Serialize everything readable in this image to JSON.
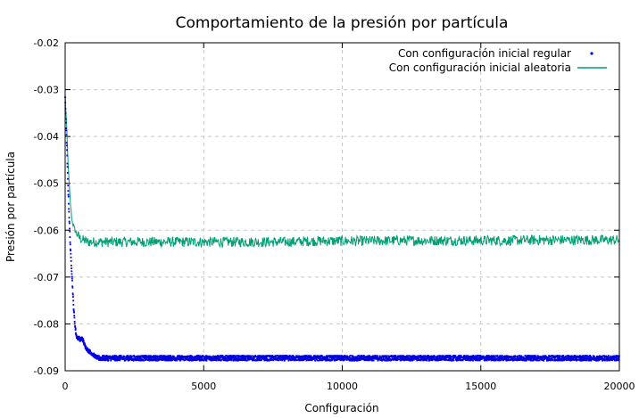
{
  "chart_data": {
    "type": "line",
    "title": "Comportamiento de la presión por partícula",
    "xlabel": "Configuración",
    "ylabel": "Presión por partícula",
    "xlim": [
      0,
      20000
    ],
    "ylim": [
      -0.09,
      -0.02
    ],
    "xticks": [
      0,
      5000,
      10000,
      15000,
      20000
    ],
    "xtick_labels": [
      "0",
      "5000",
      "10000",
      "15000",
      "20000"
    ],
    "yticks": [
      -0.09,
      -0.08,
      -0.07,
      -0.06,
      -0.05,
      -0.04,
      -0.03,
      -0.02
    ],
    "ytick_labels": [
      "-0.09",
      "-0.08",
      "-0.07",
      "-0.06",
      "-0.05",
      "-0.04",
      "-0.03",
      "-0.02"
    ],
    "grid": true,
    "legend_position": "top-right",
    "series": [
      {
        "name": "Con configuración inicial regular",
        "style": "points",
        "color": "#0000e0",
        "x": [
          0,
          30,
          60,
          100,
          150,
          200,
          250,
          300,
          350,
          400,
          450,
          500,
          550,
          600,
          650,
          700,
          750,
          800,
          900,
          1000,
          1100,
          1200,
          1400,
          1600,
          1800,
          2000,
          3000,
          4000,
          5000,
          6000,
          7000,
          8000,
          9000,
          10000,
          11000,
          12000,
          13000,
          14000,
          15000,
          16000,
          17000,
          18000,
          19000,
          20000
        ],
        "y": [
          -0.032,
          -0.037,
          -0.042,
          -0.05,
          -0.058,
          -0.065,
          -0.07,
          -0.076,
          -0.08,
          -0.0825,
          -0.083,
          -0.083,
          -0.0835,
          -0.083,
          -0.0835,
          -0.0845,
          -0.085,
          -0.0855,
          -0.086,
          -0.0865,
          -0.087,
          -0.0873,
          -0.0873,
          -0.0873,
          -0.0873,
          -0.0873,
          -0.0873,
          -0.0873,
          -0.0873,
          -0.0873,
          -0.0873,
          -0.0873,
          -0.0873,
          -0.0873,
          -0.0873,
          -0.0873,
          -0.0873,
          -0.0873,
          -0.0873,
          -0.0873,
          -0.0873,
          -0.0873,
          -0.0873,
          -0.0873
        ]
      },
      {
        "name": "Con configuración inicial aleatoria",
        "style": "line",
        "color": "#009e73",
        "x": [
          0,
          30,
          60,
          100,
          150,
          200,
          250,
          300,
          350,
          400,
          450,
          500,
          600,
          700,
          800,
          1000,
          1500,
          2000,
          3000,
          4000,
          5000,
          6000,
          7000,
          8000,
          9000,
          10000,
          11000,
          12000,
          13000,
          14000,
          15000,
          16000,
          17000,
          18000,
          19000,
          20000
        ],
        "y": [
          -0.031,
          -0.035,
          -0.039,
          -0.045,
          -0.051,
          -0.055,
          -0.058,
          -0.059,
          -0.06,
          -0.0605,
          -0.061,
          -0.0615,
          -0.062,
          -0.0622,
          -0.0625,
          -0.0625,
          -0.0625,
          -0.0625,
          -0.0625,
          -0.0625,
          -0.0625,
          -0.0625,
          -0.0625,
          -0.0625,
          -0.0623,
          -0.0623,
          -0.0623,
          -0.0622,
          -0.0622,
          -0.0622,
          -0.0622,
          -0.0622,
          -0.0621,
          -0.0621,
          -0.0621,
          -0.0621
        ]
      }
    ]
  }
}
